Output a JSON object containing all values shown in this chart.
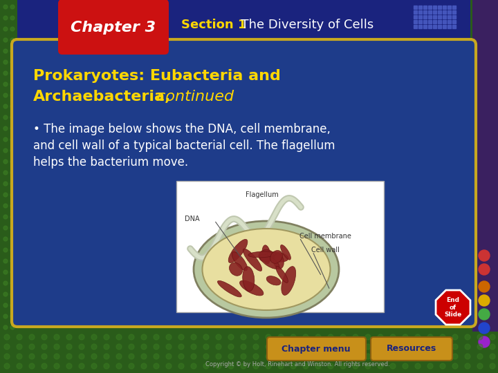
{
  "bg_green_dark": "#2a5c1a",
  "bg_green_light": "#3a7a22",
  "right_purple": "#3a2060",
  "right_purple_dots": [
    "#cc3333",
    "#cc3333",
    "#cc6600",
    "#ddaa00",
    "#44aa44",
    "#2244cc",
    "#9922cc"
  ],
  "header_bg": "#1a237e",
  "main_bg": "#1e3c8a",
  "border_gold": "#c8a820",
  "chapter_red": "#cc1111",
  "chapter_text": "Chapter 3",
  "section_label": "Section 1",
  "section_label_color": "#ffd700",
  "section_title": "  The Diversity of Cells",
  "section_title_color": "#ffffff",
  "slide_title_bold": "Prokaryotes: Eubacteria and\nArchaebacteria,",
  "slide_title_italic": " continued",
  "slide_title_color": "#ffd700",
  "bullet_line1": "• The image below shows the DNA, cell membrane,",
  "bullet_line2": "and cell wall of a typical bacterial cell. The flagellum",
  "bullet_line3": "helps the bacterium move.",
  "body_text_color": "#ffffff",
  "btn_bg": "#c8901a",
  "btn_text_color": "#1a237e",
  "btn_chapter": "Chapter menu",
  "btn_resources": "Resources",
  "copyright": "Copyright © by Holt, Rinehart and Winston. All rights reserved.",
  "stop_sign_text": "End\nof\nSlide",
  "dot_grid_color": "#4455bb",
  "left_dots_color": "#3a7a22"
}
